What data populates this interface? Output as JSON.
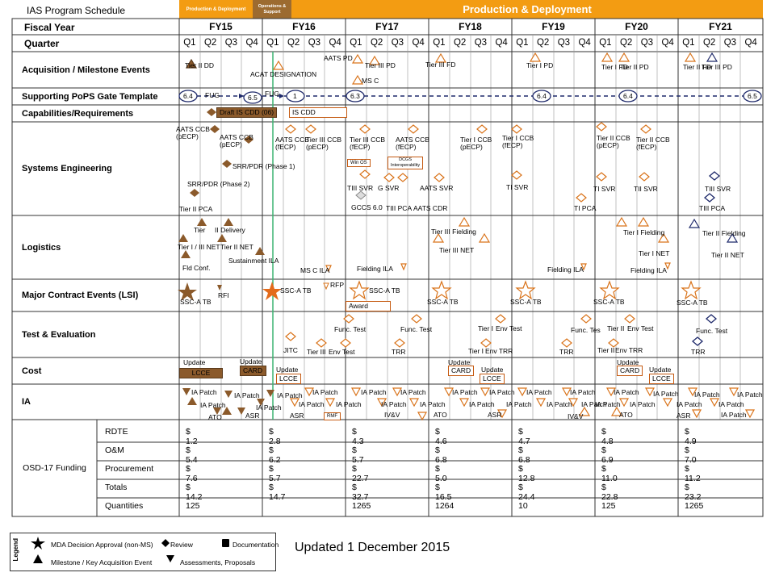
{
  "page_title": "IAS Program Schedule",
  "top_band": {
    "pd_left": "Production & Deployment",
    "ops_support": "Operations & Support",
    "pd_right": "Production & Deployment"
  },
  "header": {
    "fiscal_year_label": "Fiscal Year",
    "quarter_label": "Quarter"
  },
  "fiscal_years": [
    "FY15",
    "FY16",
    "FY17",
    "FY18",
    "FY19",
    "FY20",
    "FY21"
  ],
  "quarters": [
    "Q1",
    "Q2",
    "Q3",
    "Q4"
  ],
  "rows": {
    "acquisition": "Acquisition  / Milestone Events",
    "pops": "Supporting PoPS Gate Template",
    "capabilities": "Capabilities/Requirements",
    "systems": "Systems Engineering",
    "logistics": "Logistics",
    "contract": "Major Contract Events (LSI)",
    "test": "Test & Evaluation",
    "cost": "Cost",
    "ia": "IA"
  },
  "events": {
    "acq": [
      "Tier II DD",
      "ACAT DESIGNATION",
      "AATS PD",
      "Tier III PD",
      "MS C",
      "Tier III FD",
      "Tier I PD",
      "Tier I FD",
      "Tier II PD",
      "Tier II FD",
      "Tier III PD"
    ],
    "pops": [
      "6.4",
      "FUG",
      "6.5",
      "FUG",
      "1",
      "6.3",
      "6.4",
      "6.4",
      "6.5"
    ],
    "cap": [
      "Draft IS CDD (06)",
      "IS CDD"
    ],
    "se": [
      "AATS CCB\n(pECP)",
      "AATS CCB\n(pECP)",
      "SRR/PDR (Phase 1)",
      "SRR/PDR (Phase 2)",
      "Tier II PCA",
      "AATS CCB\n(fECP)",
      "Tier III CCB\n(pECP)",
      "Tier III CCB\n(fECP)",
      "AATS CCB\n(fECP)",
      "Win OS",
      "DCGS\nInteroperability",
      "TIII SVR",
      "G SVR",
      "GCCS 6.0",
      "TIII PCA",
      "AATS CDR",
      "AATS SVR",
      "Tier I CCB\n(pECP)",
      "Tier I CCB\n(fECP)",
      "TI SVR",
      "TI PCA",
      "Tier II CCB\n(pECP)",
      "Tier II CCB\n(fECP)",
      "TI SVR",
      "TII SVR",
      "TIII SVR",
      "TIII PCA"
    ],
    "log": [
      "Tier",
      "II Delivery",
      "Tier I / III NET",
      "Tier II NET",
      "Fld Conf.",
      "Sustainment ILA",
      "MS C ILA",
      "Fielding ILA",
      "Tier III Fielding",
      "Tier III NET",
      "Fielding ILA",
      "Tier I Fielding",
      "Tier I NET",
      "Fielding ILA",
      "Tier II Fielding",
      "Tier II NET"
    ],
    "lsi": [
      "SSC-A TB",
      "RFI",
      "SSC-A TB",
      "RFP",
      "SSC-A TB",
      "Award",
      "SSC-A TB",
      "SSC-A TB",
      "SSC-A TB",
      "SSC-A TB"
    ],
    "te": [
      "JITC",
      "Tier III",
      "Env Test",
      "Func. Test",
      "TRR",
      "Func. Test",
      "Tier I",
      "Env Test",
      "Tier I",
      "Env TRR",
      "TRR",
      "Func. Tes",
      "Tier II",
      "Env Test",
      "Tier II",
      "Env TRR",
      "Func. Test",
      "TRR"
    ],
    "cost": [
      "Update",
      "LCCE",
      "Update",
      "CARD",
      "Update",
      "LCCE",
      "Update",
      "CARD",
      "Update",
      "LCCE",
      "Update",
      "CARD",
      "Update",
      "LCCE"
    ],
    "ia": [
      "IA Patch",
      "IA Patch",
      "ATO",
      "ASR",
      "IA Patch",
      "IA Patch",
      "IA Patch",
      "IA Patch",
      "IA Patch",
      "ASR",
      "IA Patch",
      "RMF",
      "IA Patch",
      "IA Patch",
      "IV&V",
      "IA Patch",
      "IA Patch",
      "ATO",
      "IA Patch",
      "IA Patch",
      "IA Patch",
      "ASR",
      "IA Patch",
      "IA Patch",
      "IA Patch",
      "IA Patch",
      "IA Patch",
      "IV&V",
      "IA Patch",
      "IA Patch",
      "ATO",
      "IA Patch",
      "IA Patch",
      "IA Patch",
      "ASR",
      "IA Patch",
      "IA Patch",
      "IA Patch",
      "IA Patch"
    ]
  },
  "funding": {
    "label": "OSD-17 Funding",
    "rows": [
      {
        "name": "RDTE",
        "values": [
          "$ 1.2",
          "$ 2.8",
          "$ 4.3",
          "$ 4.6",
          "$ 4.7",
          "$ 4.8",
          "$ 4.9"
        ]
      },
      {
        "name": "O&M",
        "values": [
          "$ 5.4",
          "$ 6.2",
          "$ 5.7",
          "$ 6.8",
          "$ 6.8",
          "$ 6.9",
          "$ 7.0"
        ]
      },
      {
        "name": "Procurement",
        "values": [
          "$ 7.6",
          "$ 5.7",
          "$ 22.7",
          "$ 5.0",
          "$ 12.8",
          "$ 11.0",
          "$ 11.2"
        ]
      },
      {
        "name": "Totals",
        "values": [
          "$ 14.2",
          "$ 14.7",
          "$ 32.7",
          "$ 16.5",
          "$ 24.4",
          "$ 22.8",
          "$ 23.2"
        ]
      },
      {
        "name": "Quantities",
        "values": [
          "125",
          "",
          "1265",
          "1264",
          "10",
          "125",
          "1265"
        ]
      }
    ]
  },
  "legend": {
    "title": "Legend",
    "items": [
      "MDA Decision Approval (non-MS)",
      "Review",
      "Documentation",
      "Milestone / Key Acquisition Event",
      "Assessments, Proposals"
    ]
  },
  "updated": "Updated 1 December 2015",
  "colors": {
    "orange": "#f39c12",
    "band_brown": "#9c6b30",
    "brown": "#8b5a2b",
    "outline_orange": "#d9731a",
    "navy": "#1f2a6b",
    "grid": "#444444",
    "green": "#3cb371"
  }
}
